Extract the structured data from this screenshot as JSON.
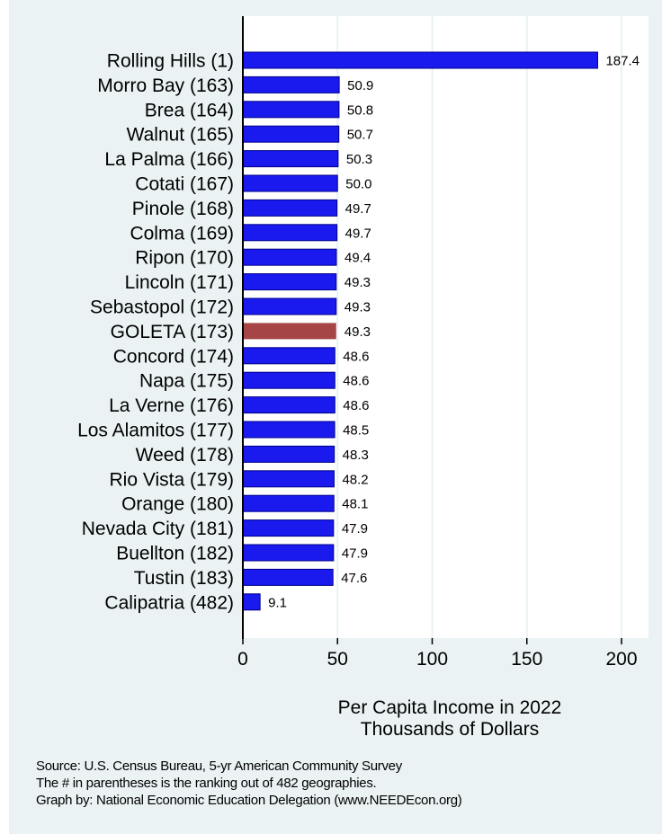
{
  "chart_data": {
    "type": "bar",
    "orientation": "horizontal",
    "categories": [
      "Rolling Hills  (1)",
      "Morro Bay (163)",
      "Brea (164)",
      "Walnut (165)",
      "La Palma (166)",
      "Cotati (167)",
      "Pinole (168)",
      "Colma (169)",
      "Ripon (170)",
      "Lincoln (171)",
      "Sebastopol (172)",
      "GOLETA (173)",
      "Concord (174)",
      "Napa (175)",
      "La Verne (176)",
      "Los Alamitos (177)",
      "Weed (178)",
      "Rio Vista (179)",
      "Orange (180)",
      "Nevada City (181)",
      "Buellton (182)",
      "Tustin (183)",
      "Calipatria (482)"
    ],
    "values": [
      187.4,
      50.9,
      50.8,
      50.7,
      50.3,
      50.0,
      49.7,
      49.7,
      49.4,
      49.3,
      49.3,
      49.3,
      48.6,
      48.6,
      48.6,
      48.5,
      48.3,
      48.2,
      48.1,
      47.9,
      47.9,
      47.6,
      9.1
    ],
    "value_labels": [
      "187.4",
      "50.9",
      "50.8",
      "50.7",
      "50.3",
      "50.0",
      "49.7",
      "49.7",
      "49.4",
      "49.3",
      "49.3",
      "49.3",
      "48.6",
      "48.6",
      "48.6",
      "48.5",
      "48.3",
      "48.2",
      "48.1",
      "47.9",
      "47.9",
      "47.6",
      "9.1"
    ],
    "highlight_category": "GOLETA (173)",
    "colors": {
      "bar": "#1a1aee",
      "highlight": "#a64545",
      "bar_edge": "#00008b",
      "grid": "#eaf2f3",
      "panel": "#eaf2f3"
    },
    "xlim": [
      0,
      210
    ],
    "xticks": [
      0,
      50,
      100,
      150,
      200
    ],
    "xtick_labels": [
      "0",
      "50",
      "100",
      "150",
      "200"
    ],
    "grid": true,
    "xlabel_lines": [
      "Per Capita Income in 2022",
      "Thousands of Dollars"
    ],
    "title": ""
  },
  "notes": {
    "source": "Source: U.S. Census Bureau, 5-yr American Community Survey",
    "ranking": "The # in parentheses is the ranking out of 482 geographies.",
    "credit": "Graph by: National Economic Education Delegation (www.NEEDEcon.org)"
  }
}
